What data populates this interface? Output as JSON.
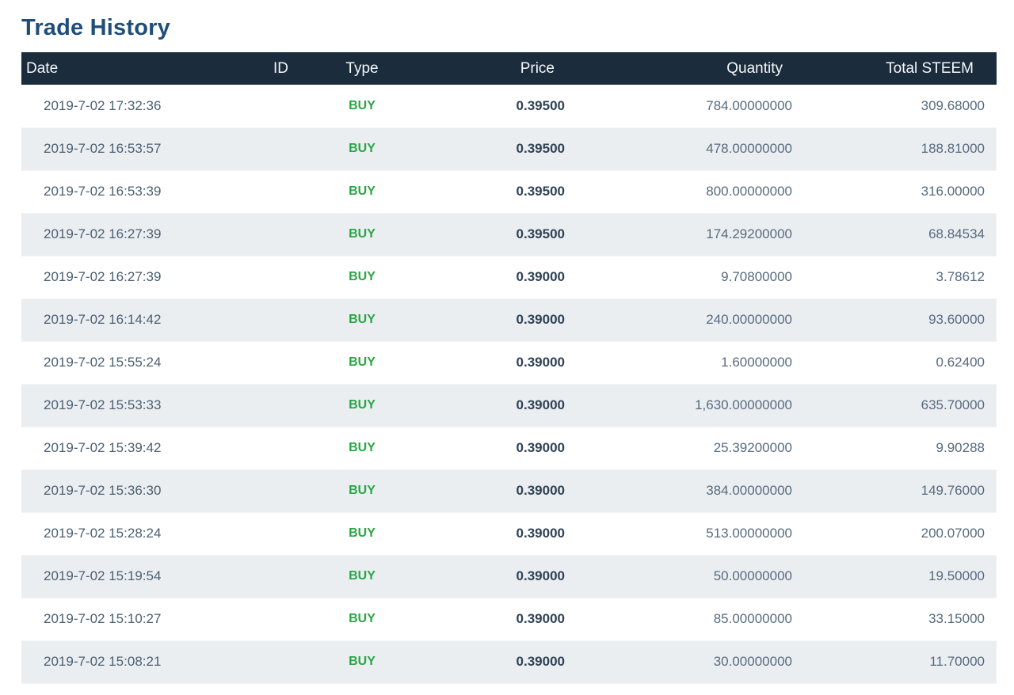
{
  "page": {
    "title": "Trade History"
  },
  "colors": {
    "title_text": "#1f4e78",
    "header_bg": "#1b2c3d",
    "header_text": "#f4f7f9",
    "row_stripe_bg": "#ebeef1",
    "buy_green": "#28a745",
    "price_text": "#2f4357",
    "date_text": "#4b6072",
    "number_text": "#576b7f"
  },
  "table": {
    "columns": [
      {
        "key": "date",
        "label": "Date"
      },
      {
        "key": "id",
        "label": "ID"
      },
      {
        "key": "type",
        "label": "Type"
      },
      {
        "key": "price",
        "label": "Price"
      },
      {
        "key": "quantity",
        "label": "Quantity"
      },
      {
        "key": "total",
        "label": "Total STEEM"
      }
    ],
    "rows": [
      {
        "date": "2019-7-02 17:32:36",
        "id": "",
        "type": "BUY",
        "price": "0.39500",
        "quantity": "784.00000000",
        "total": "309.68000"
      },
      {
        "date": "2019-7-02 16:53:57",
        "id": "",
        "type": "BUY",
        "price": "0.39500",
        "quantity": "478.00000000",
        "total": "188.81000"
      },
      {
        "date": "2019-7-02 16:53:39",
        "id": "",
        "type": "BUY",
        "price": "0.39500",
        "quantity": "800.00000000",
        "total": "316.00000"
      },
      {
        "date": "2019-7-02 16:27:39",
        "id": "",
        "type": "BUY",
        "price": "0.39500",
        "quantity": "174.29200000",
        "total": "68.84534"
      },
      {
        "date": "2019-7-02 16:27:39",
        "id": "",
        "type": "BUY",
        "price": "0.39000",
        "quantity": "9.70800000",
        "total": "3.78612"
      },
      {
        "date": "2019-7-02 16:14:42",
        "id": "",
        "type": "BUY",
        "price": "0.39000",
        "quantity": "240.00000000",
        "total": "93.60000"
      },
      {
        "date": "2019-7-02 15:55:24",
        "id": "",
        "type": "BUY",
        "price": "0.39000",
        "quantity": "1.60000000",
        "total": "0.62400"
      },
      {
        "date": "2019-7-02 15:53:33",
        "id": "",
        "type": "BUY",
        "price": "0.39000",
        "quantity": "1,630.00000000",
        "total": "635.70000"
      },
      {
        "date": "2019-7-02 15:39:42",
        "id": "",
        "type": "BUY",
        "price": "0.39000",
        "quantity": "25.39200000",
        "total": "9.90288"
      },
      {
        "date": "2019-7-02 15:36:30",
        "id": "",
        "type": "BUY",
        "price": "0.39000",
        "quantity": "384.00000000",
        "total": "149.76000"
      },
      {
        "date": "2019-7-02 15:28:24",
        "id": "",
        "type": "BUY",
        "price": "0.39000",
        "quantity": "513.00000000",
        "total": "200.07000"
      },
      {
        "date": "2019-7-02 15:19:54",
        "id": "",
        "type": "BUY",
        "price": "0.39000",
        "quantity": "50.00000000",
        "total": "19.50000"
      },
      {
        "date": "2019-7-02 15:10:27",
        "id": "",
        "type": "BUY",
        "price": "0.39000",
        "quantity": "85.00000000",
        "total": "33.15000"
      },
      {
        "date": "2019-7-02 15:08:21",
        "id": "",
        "type": "BUY",
        "price": "0.39000",
        "quantity": "30.00000000",
        "total": "11.70000"
      }
    ]
  }
}
